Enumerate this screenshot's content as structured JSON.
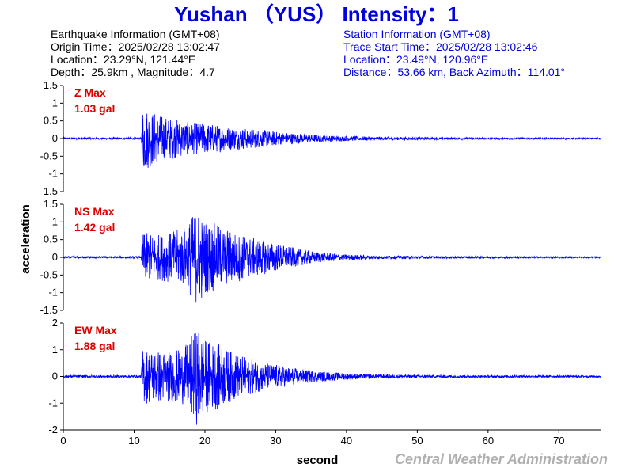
{
  "colors": {
    "title": "#0000dd",
    "station_info": "#0000dd",
    "quake_info": "#000000",
    "trace": "#0000ff",
    "max_label": "#dd0000",
    "axis": "#000000",
    "credit": "#b0b0b0"
  },
  "header": {
    "title": "Yushan （YUS） Intensity：1",
    "earthquake_info": {
      "heading": "Earthquake Information  (GMT+08)",
      "origin_time": "Origin Time：2025/02/28 13:02:47",
      "location": "Location：23.29°N, 121.44°E",
      "depth_magnitude": "Depth：25.9km , Magnitude：4.7"
    },
    "station_info": {
      "heading": "Station Information  (GMT+08)",
      "trace_start": "Trace Start Time：2025/02/28 13:02:46",
      "location": "Location：23.49°N, 120.96°E",
      "distance": "Distance：53.66 km, Back Azimuth：114.01°"
    }
  },
  "footer": {
    "credit": "Central Weather Administration"
  },
  "chart_data": {
    "type": "line",
    "xlabel": "second",
    "ylabel": "acceleration",
    "xlim": [
      0,
      76
    ],
    "xticks": [
      0,
      10,
      20,
      30,
      40,
      50,
      60,
      70
    ],
    "onset_second": 11.2,
    "panels": [
      {
        "component": "Z",
        "max_label": "Z Max",
        "max_value": "1.03 gal",
        "ylim": [
          -1.5,
          1.5
        ],
        "yticks": [
          1.5,
          1,
          0.5,
          0,
          -0.5,
          -1,
          -1.5
        ],
        "envelope": [
          [
            0,
            0.03
          ],
          [
            11.0,
            0.03
          ],
          [
            11.2,
            1.03
          ],
          [
            12,
            0.85
          ],
          [
            14,
            0.65
          ],
          [
            16,
            0.55
          ],
          [
            18,
            0.45
          ],
          [
            20,
            0.45
          ],
          [
            22,
            0.38
          ],
          [
            24,
            0.32
          ],
          [
            26,
            0.3
          ],
          [
            28,
            0.25
          ],
          [
            30,
            0.2
          ],
          [
            33,
            0.15
          ],
          [
            36,
            0.1
          ],
          [
            40,
            0.07
          ],
          [
            45,
            0.05
          ],
          [
            50,
            0.04
          ],
          [
            60,
            0.03
          ],
          [
            76,
            0.02
          ]
        ]
      },
      {
        "component": "NS",
        "max_label": "NS Max",
        "max_value": "1.42 gal",
        "ylim": [
          -1.5,
          1.5
        ],
        "yticks": [
          1.5,
          1,
          0.5,
          0,
          -0.5,
          -1,
          -1.5
        ],
        "envelope": [
          [
            0,
            0.03
          ],
          [
            11.0,
            0.03
          ],
          [
            11.2,
            0.7
          ],
          [
            13,
            0.65
          ],
          [
            15,
            0.7
          ],
          [
            17,
            0.85
          ],
          [
            19,
            1.4
          ],
          [
            20,
            1.1
          ],
          [
            22,
            0.9
          ],
          [
            24,
            0.75
          ],
          [
            26,
            0.6
          ],
          [
            28,
            0.5
          ],
          [
            30,
            0.4
          ],
          [
            33,
            0.25
          ],
          [
            36,
            0.15
          ],
          [
            40,
            0.08
          ],
          [
            45,
            0.05
          ],
          [
            50,
            0.04
          ],
          [
            60,
            0.03
          ],
          [
            76,
            0.02
          ]
        ]
      },
      {
        "component": "EW",
        "max_label": "EW Max",
        "max_value": "1.88 gal",
        "ylim": [
          -2,
          2
        ],
        "yticks": [
          2,
          1,
          0,
          -1,
          -2
        ],
        "envelope": [
          [
            0,
            0.05
          ],
          [
            11.0,
            0.05
          ],
          [
            11.2,
            1.05
          ],
          [
            13,
            1.0
          ],
          [
            15,
            0.95
          ],
          [
            17,
            1.05
          ],
          [
            19,
            1.88
          ],
          [
            20,
            1.4
          ],
          [
            22,
            1.2
          ],
          [
            24,
            0.9
          ],
          [
            26,
            0.7
          ],
          [
            28,
            0.55
          ],
          [
            30,
            0.45
          ],
          [
            33,
            0.3
          ],
          [
            36,
            0.2
          ],
          [
            40,
            0.12
          ],
          [
            45,
            0.08
          ],
          [
            50,
            0.06
          ],
          [
            60,
            0.05
          ],
          [
            76,
            0.04
          ]
        ]
      }
    ]
  }
}
